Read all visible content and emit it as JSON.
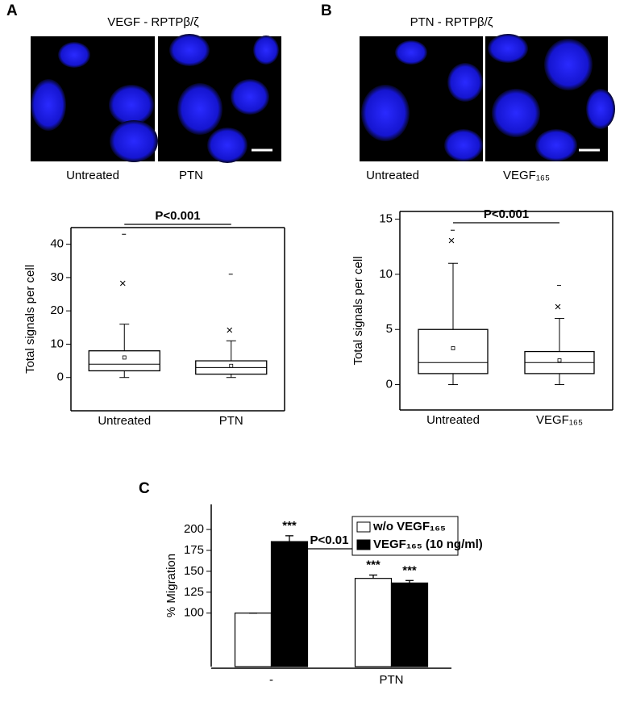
{
  "panels": [
    {
      "letter": "A",
      "image_title": "VEGF - RPTPβ/ζ",
      "image_labels": [
        "Untreated",
        "PTN"
      ]
    },
    {
      "letter": "B",
      "image_title": "PTN - RPTPβ/ζ",
      "image_labels": [
        "Untreated",
        "VEGF₁₆₅"
      ]
    },
    {
      "letter": "C"
    }
  ],
  "chart_data": [
    {
      "type": "box",
      "y_label": "Total signals per cell",
      "categories": [
        "Untreated",
        "PTN"
      ],
      "boxes": [
        {
          "min": 0,
          "q1": 2,
          "median": 4,
          "q3": 8,
          "max": 16,
          "mean": 6,
          "p99": 28,
          "extreme": 43
        },
        {
          "min": 0,
          "q1": 1,
          "median": 3,
          "q3": 5,
          "max": 11,
          "mean": 3.5,
          "p99": 14,
          "extreme": 31
        }
      ],
      "ylim": [
        -10,
        45
      ],
      "yticks": [
        0,
        10,
        20,
        30,
        40
      ],
      "comparison": "P<0.001"
    },
    {
      "type": "box",
      "y_label": "Total signals per cell",
      "categories": [
        "Untreated",
        "VEGF₁₆₅"
      ],
      "boxes": [
        {
          "min": 0,
          "q1": 1,
          "median": 2,
          "q3": 5,
          "max": 11,
          "mean": 3.3,
          "p99": 13,
          "extreme": 14
        },
        {
          "min": 0,
          "q1": 1,
          "median": 2,
          "q3": 3,
          "max": 6,
          "mean": 2.2,
          "p99": 7,
          "extreme": 9
        }
      ],
      "ylim": [
        -2.3,
        15.7
      ],
      "yticks": [
        0,
        5,
        10,
        15
      ],
      "comparison": "P<0.001"
    },
    {
      "type": "bar",
      "y_label": "% Migration",
      "categories": [
        "-",
        "PTN"
      ],
      "series": [
        {
          "name": "w/o VEGF₁₆₅",
          "color": "#ffffff",
          "values": [
            100,
            141.5
          ],
          "errors": [
            0,
            4
          ],
          "significance": [
            null,
            "***"
          ]
        },
        {
          "name": "VEGF₁₆₅ (10 ng/ml)",
          "color": "#000000",
          "values": [
            185.5,
            136
          ],
          "errors": [
            7,
            3
          ],
          "significance": [
            "***",
            "***"
          ]
        }
      ],
      "ylim": [
        36,
        230
      ],
      "yticks": [
        100,
        125,
        150,
        175,
        200
      ],
      "comparison": "P<0.01"
    }
  ]
}
